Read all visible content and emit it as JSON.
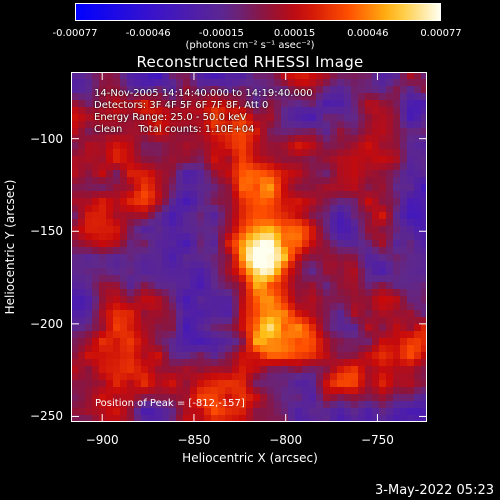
{
  "colorbar": {
    "ticks": [
      "-0.00077",
      "-0.00046",
      "-0.00015",
      "0.00015",
      "0.00046",
      "0.00077"
    ],
    "units": "(photons cm⁻² s⁻¹ asec⁻²)",
    "range": [
      -0.00077,
      0.00077
    ]
  },
  "title": "Reconstructed RHESSI Image",
  "info": {
    "time": "14-Nov-2005 14:14:40.000 to 14:19:40.000",
    "detectors": "Detectors: 3F 4F 5F 6F 7F 8F, Att 0",
    "energy": "Energy Range: 25.0 - 50.0 keV",
    "clean": "Clean     Total counts: 1.10E+04"
  },
  "peak_label": "Position of Peak = [-812,-157]",
  "axes": {
    "xlabel": "Heliocentric X (arcsec)",
    "ylabel": "Heliocentric Y (arcsec)",
    "xticks": [
      "-900",
      "-850",
      "-800",
      "-750"
    ],
    "yticks": [
      "-100",
      "-150",
      "-200",
      "-250"
    ],
    "xlim": [
      -917,
      -723
    ],
    "ylim": [
      -253,
      -64
    ]
  },
  "datestamp": "3-May-2022 05:23",
  "chart_data": {
    "type": "heatmap",
    "title": "Reconstructed RHESSI Image",
    "xlabel": "Heliocentric X (arcsec)",
    "ylabel": "Heliocentric Y (arcsec)",
    "xlim": [
      -917,
      -723
    ],
    "ylim": [
      -253,
      -64
    ],
    "peak": [
      -812,
      -157
    ],
    "sources": [
      {
        "x": -812,
        "y": -157,
        "intensity": 0.00077
      },
      {
        "x": -822,
        "y": -110,
        "intensity": 0.00045
      },
      {
        "x": -805,
        "y": -205,
        "intensity": 0.00035
      },
      {
        "x": -895,
        "y": -145,
        "intensity": 0.00038
      },
      {
        "x": -835,
        "y": -240,
        "intensity": 0.0004
      },
      {
        "x": -745,
        "y": -225,
        "intensity": 0.00025
      },
      {
        "x": -880,
        "y": -210,
        "intensity": 0.0002
      }
    ]
  }
}
